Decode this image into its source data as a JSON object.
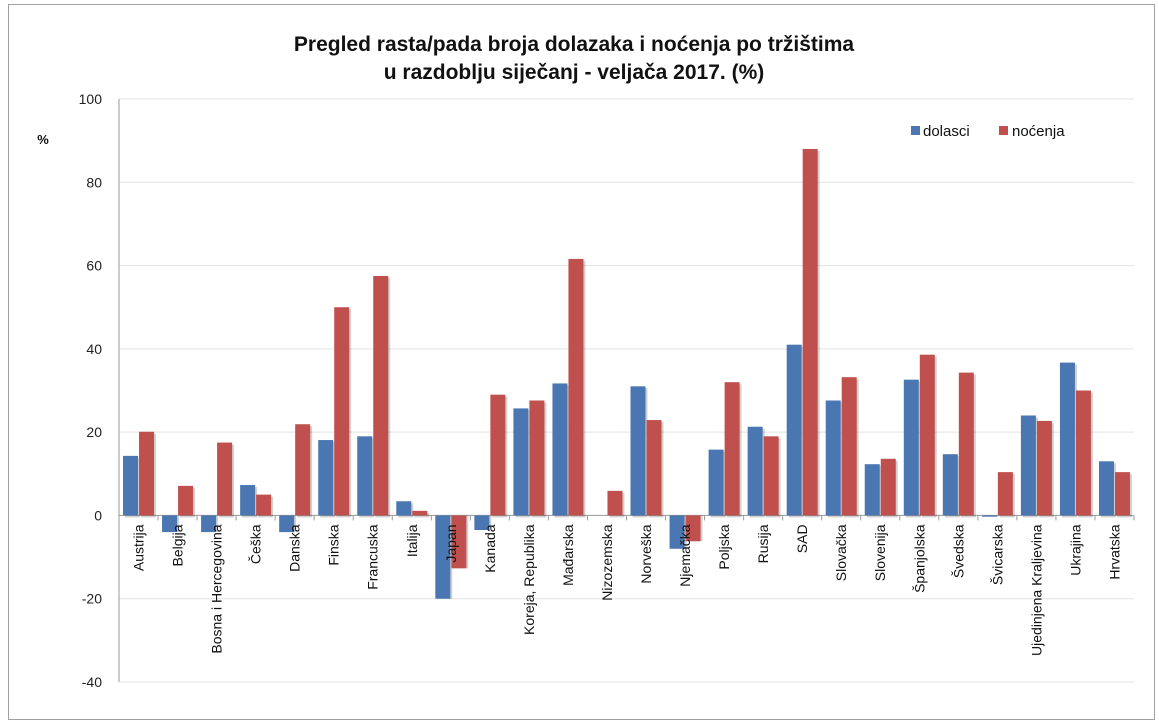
{
  "chart_data": {
    "type": "bar",
    "title": "Pregled rasta/pada broja dolazaka i noćenja po tržištima",
    "subtitle": "u razdoblju siječanj - veljača 2017. (%)",
    "ylabel": "%",
    "xlabel": "",
    "ylim": [
      -40,
      100
    ],
    "yticks": [
      -40,
      -20,
      0,
      20,
      40,
      60,
      80,
      100
    ],
    "grid": true,
    "legend_position": "top-right",
    "categories": [
      "Austrija",
      "Belgija",
      "Bosna i Hercegovina",
      "Češka",
      "Danska",
      "Finska",
      "Francuska",
      "Italija",
      "Japan",
      "Kanada",
      "Koreja, Republika",
      "Mađarska",
      "Nizozemska",
      "Norveška",
      "Njemačka",
      "Poljska",
      "Rusija",
      "SAD",
      "Slovačka",
      "Slovenija",
      "Španjolska",
      "Švedska",
      "Švicarska",
      "Ujedinjena Kraljevina",
      "Ukrajina",
      "Hrvatska"
    ],
    "series": [
      {
        "name": "dolasci",
        "color": "#4a76b2",
        "values": [
          14.3,
          -4.0,
          -4.0,
          7.3,
          -4.0,
          18.1,
          19.0,
          3.4,
          -20.0,
          -3.5,
          25.7,
          31.7,
          0.0,
          31.0,
          -8.0,
          15.8,
          21.3,
          41.0,
          27.6,
          12.3,
          32.6,
          14.7,
          -0.3,
          24.0,
          36.7,
          13.0
        ]
      },
      {
        "name": "noćenja",
        "color": "#c0504d",
        "values": [
          20.1,
          7.1,
          17.5,
          5.0,
          21.9,
          50.0,
          57.5,
          1.1,
          -12.7,
          29.0,
          27.6,
          61.6,
          5.9,
          22.9,
          -6.2,
          32.0,
          19.0,
          88.0,
          33.2,
          13.6,
          38.6,
          34.3,
          10.4,
          22.7,
          30.0,
          10.4
        ]
      }
    ]
  },
  "colors": {
    "dolasci": "#4a76b2",
    "nocenja": "#c0504d",
    "grid": "#e3e3e3",
    "axis": "#9a9a9a"
  }
}
